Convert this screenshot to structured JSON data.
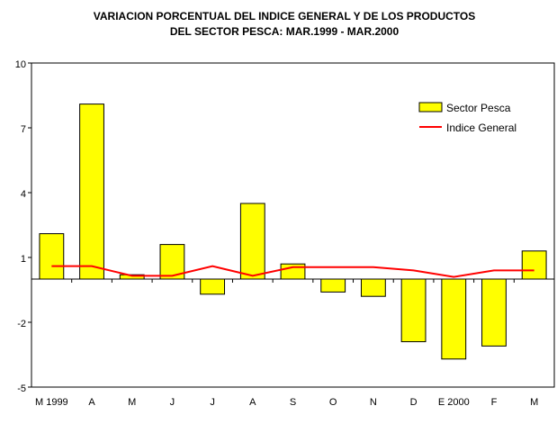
{
  "chart_data": {
    "type": "bar",
    "title_lines": [
      "VARIACION PORCENTUAL DEL INDICE GENERAL Y DE LOS PRODUCTOS",
      "DEL SECTOR PESCA: MAR.1999 - MAR.2000"
    ],
    "categories": [
      "M 1999",
      "A",
      "M",
      "J",
      "J",
      "A",
      "S",
      "O",
      "N",
      "D",
      "E 2000",
      "F",
      "M"
    ],
    "ylim": [
      -5,
      10
    ],
    "yticks": [
      "10",
      "7",
      "4",
      "1",
      "-2",
      "-5"
    ],
    "legend_position": "top-right",
    "grid": false,
    "series": [
      {
        "name": "Sector Pesca",
        "type": "bar",
        "color": "#FFFF00",
        "values": [
          2.1,
          8.1,
          0.2,
          1.6,
          -0.7,
          3.5,
          0.7,
          -0.6,
          -0.8,
          -2.9,
          -3.7,
          -3.1,
          1.3
        ]
      },
      {
        "name": "Indice General",
        "type": "line",
        "color": "#FF0000",
        "values": [
          0.6,
          0.6,
          0.15,
          0.15,
          0.6,
          0.15,
          0.55,
          0.55,
          0.55,
          0.4,
          0.1,
          0.4,
          0.4
        ]
      }
    ]
  }
}
